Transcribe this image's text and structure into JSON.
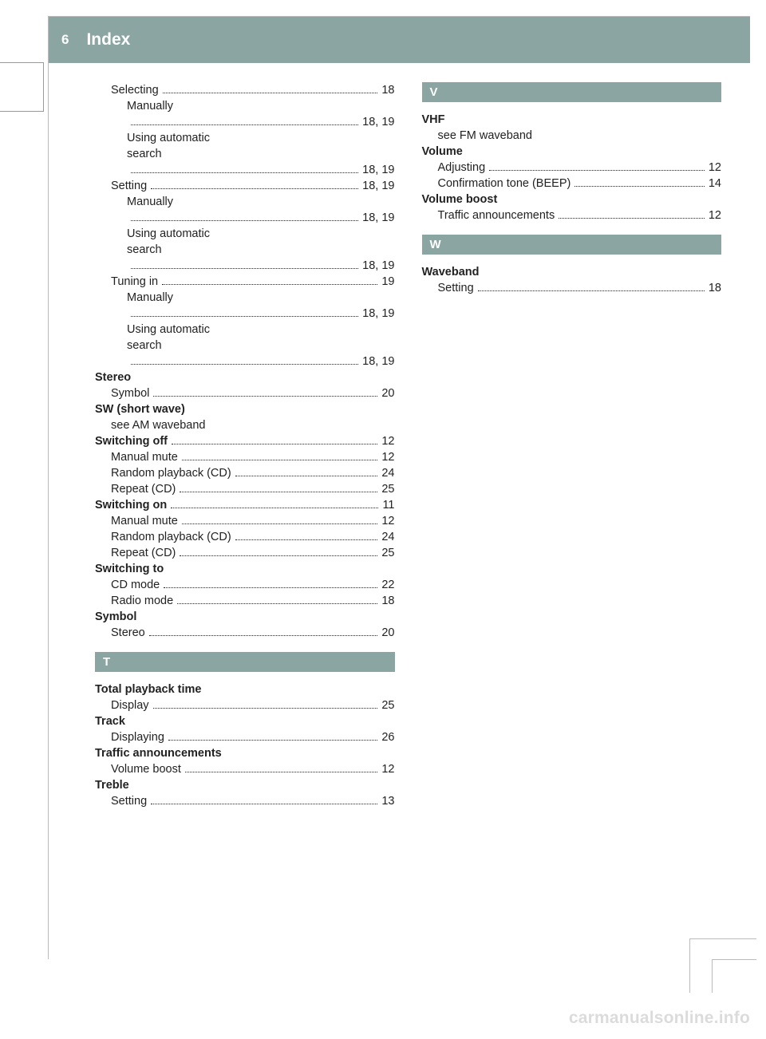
{
  "header": {
    "page_num": "6",
    "title": "Index"
  },
  "watermark": "carmanualsonline.info",
  "left_col": [
    {
      "t": "entry",
      "indent": 1,
      "label": "Selecting",
      "page": "18"
    },
    {
      "t": "plain",
      "indent": 2,
      "text": "Manually"
    },
    {
      "t": "entry",
      "indent": 2,
      "label": "",
      "page": "18, 19"
    },
    {
      "t": "plain",
      "indent": 2,
      "text": "Using automatic"
    },
    {
      "t": "plain",
      "indent": 2,
      "text": "search"
    },
    {
      "t": "entry",
      "indent": 2,
      "label": "",
      "page": "18, 19"
    },
    {
      "t": "entry",
      "indent": 1,
      "label": "Setting",
      "page": "18, 19"
    },
    {
      "t": "plain",
      "indent": 2,
      "text": "Manually"
    },
    {
      "t": "entry",
      "indent": 2,
      "label": "",
      "page": "18, 19"
    },
    {
      "t": "plain",
      "indent": 2,
      "text": "Using automatic"
    },
    {
      "t": "plain",
      "indent": 2,
      "text": "search"
    },
    {
      "t": "entry",
      "indent": 2,
      "label": "",
      "page": "18, 19"
    },
    {
      "t": "entry",
      "indent": 1,
      "label": "Tuning in",
      "page": "19"
    },
    {
      "t": "plain",
      "indent": 2,
      "text": "Manually"
    },
    {
      "t": "entry",
      "indent": 2,
      "label": "",
      "page": "18, 19"
    },
    {
      "t": "plain",
      "indent": 2,
      "text": "Using automatic"
    },
    {
      "t": "plain",
      "indent": 2,
      "text": "search"
    },
    {
      "t": "entry",
      "indent": 2,
      "label": "",
      "page": "18, 19"
    },
    {
      "t": "plain",
      "indent": 0,
      "bold": true,
      "text": "Stereo"
    },
    {
      "t": "entry",
      "indent": 1,
      "label": "Symbol",
      "page": "20"
    },
    {
      "t": "plain",
      "indent": 0,
      "bold": true,
      "text": "SW (short wave)"
    },
    {
      "t": "plain",
      "indent": 1,
      "text": "see AM waveband"
    },
    {
      "t": "entry",
      "indent": 0,
      "bold": true,
      "label": "Switching off",
      "page": "12"
    },
    {
      "t": "entry",
      "indent": 1,
      "label": "Manual mute",
      "page": "12"
    },
    {
      "t": "entry",
      "indent": 1,
      "label": "Random playback (CD)",
      "page": "24"
    },
    {
      "t": "entry",
      "indent": 1,
      "label": "Repeat (CD)",
      "page": "25"
    },
    {
      "t": "entry",
      "indent": 0,
      "bold": true,
      "label": "Switching on",
      "page": "11"
    },
    {
      "t": "entry",
      "indent": 1,
      "label": "Manual mute",
      "page": "12"
    },
    {
      "t": "entry",
      "indent": 1,
      "label": "Random playback (CD)",
      "page": "24"
    },
    {
      "t": "entry",
      "indent": 1,
      "label": "Repeat (CD)",
      "page": "25"
    },
    {
      "t": "plain",
      "indent": 0,
      "bold": true,
      "text": "Switching to"
    },
    {
      "t": "entry",
      "indent": 1,
      "label": "CD mode",
      "page": "22"
    },
    {
      "t": "entry",
      "indent": 1,
      "label": "Radio mode",
      "page": "18"
    },
    {
      "t": "plain",
      "indent": 0,
      "bold": true,
      "text": "Symbol"
    },
    {
      "t": "entry",
      "indent": 1,
      "label": "Stereo",
      "page": "20"
    },
    {
      "t": "section",
      "letter": "T"
    },
    {
      "t": "plain",
      "indent": 0,
      "bold": true,
      "text": "Total playback time"
    },
    {
      "t": "entry",
      "indent": 1,
      "label": "Display",
      "page": "25"
    },
    {
      "t": "plain",
      "indent": 0,
      "bold": true,
      "text": "Track"
    },
    {
      "t": "entry",
      "indent": 1,
      "label": "Displaying",
      "page": "26"
    },
    {
      "t": "plain",
      "indent": 0,
      "bold": true,
      "text": "Traffic announcements"
    },
    {
      "t": "entry",
      "indent": 1,
      "label": "Volume boost",
      "page": "12"
    },
    {
      "t": "plain",
      "indent": 0,
      "bold": true,
      "text": "Treble"
    },
    {
      "t": "entry",
      "indent": 1,
      "label": "Setting",
      "page": "13"
    }
  ],
  "right_col": [
    {
      "t": "section",
      "letter": "V",
      "first": true
    },
    {
      "t": "plain",
      "indent": 0,
      "bold": true,
      "text": "VHF"
    },
    {
      "t": "plain",
      "indent": 1,
      "text": "see FM waveband"
    },
    {
      "t": "plain",
      "indent": 0,
      "bold": true,
      "text": "Volume"
    },
    {
      "t": "entry",
      "indent": 1,
      "label": "Adjusting",
      "page": "12"
    },
    {
      "t": "entry",
      "indent": 1,
      "label": "Confirmation tone (BEEP)",
      "page": "14"
    },
    {
      "t": "plain",
      "indent": 0,
      "bold": true,
      "text": "Volume boost"
    },
    {
      "t": "entry",
      "indent": 1,
      "label": "Traffic announcements",
      "page": "12"
    },
    {
      "t": "section",
      "letter": "W"
    },
    {
      "t": "plain",
      "indent": 0,
      "bold": true,
      "text": "Waveband"
    },
    {
      "t": "entry",
      "indent": 1,
      "label": "Setting",
      "page": "18"
    }
  ]
}
